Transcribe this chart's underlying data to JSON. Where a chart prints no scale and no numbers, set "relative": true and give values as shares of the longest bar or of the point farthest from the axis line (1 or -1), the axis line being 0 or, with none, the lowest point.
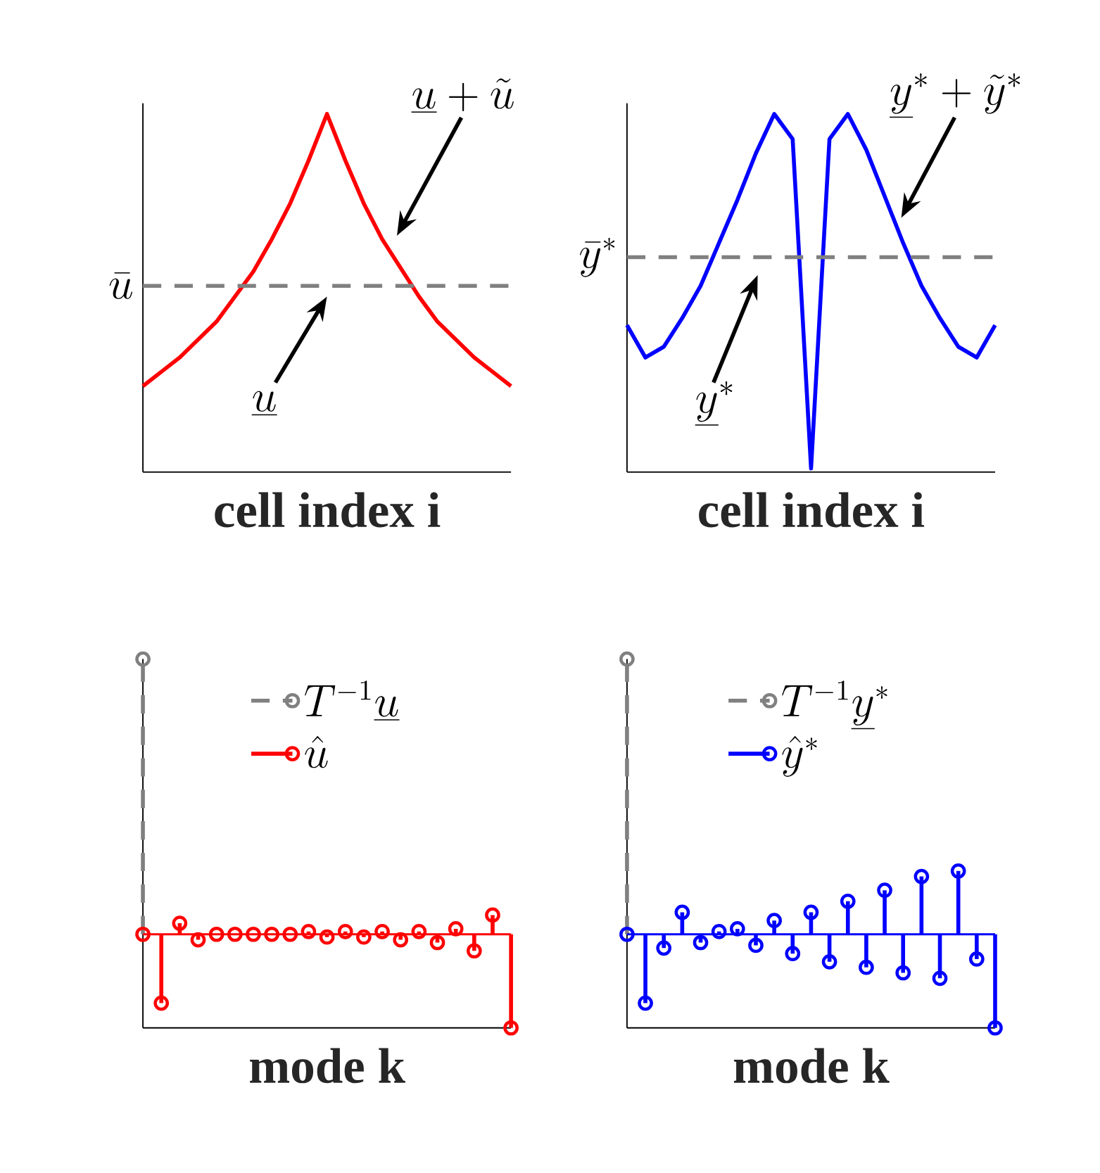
{
  "chart_data": [
    {
      "type": "line",
      "relative": true,
      "xlabel": "cell index i",
      "categories": [
        null,
        null,
        null,
        null,
        null,
        null,
        null,
        null,
        null,
        null,
        null,
        null,
        null,
        null,
        null,
        null,
        null,
        null,
        null,
        null,
        null
      ],
      "series": [
        {
          "color": "#ff0000",
          "values": [
            0.24,
            0.28,
            0.32,
            0.37,
            0.42,
            0.49,
            0.56,
            0.65,
            0.75,
            0.87,
            1,
            0.87,
            0.75,
            0.65,
            0.57,
            0.49,
            0.42,
            0.37,
            0.32,
            0.28,
            0.24
          ]
        }
      ],
      "ref_lines": [
        {
          "axis": "y",
          "value": 0.52,
          "label": "\\bar{u}",
          "color": "#808080",
          "line_style": "dashed"
        }
      ],
      "annotations": [
        "\\underline{u}+\\tilde{u}",
        "\\underline{u}"
      ]
    },
    {
      "type": "line",
      "relative": true,
      "xlabel": "cell index i",
      "categories": [
        null,
        null,
        null,
        null,
        null,
        null,
        null,
        null,
        null,
        null,
        null,
        null,
        null,
        null,
        null,
        null,
        null,
        null,
        null,
        null,
        null
      ],
      "series": [
        {
          "color": "#0000ff",
          "values": [
            0.41,
            0.32,
            0.35,
            0.43,
            0.52,
            0.64,
            0.76,
            0.89,
            1,
            0.93,
            0.01,
            0.93,
            1,
            0.9,
            0.77,
            0.64,
            0.52,
            0.43,
            0.35,
            0.32,
            0.41
          ]
        }
      ],
      "ref_lines": [
        {
          "axis": "y",
          "value": 0.6,
          "label": "\\bar{y}^*",
          "color": "#808080",
          "line_style": "dashed"
        }
      ],
      "annotations": [
        "\\underline{y}^*+\\tilde{y}^*",
        "\\underline{y}^*"
      ]
    },
    {
      "type": "lollipop",
      "relative": true,
      "xlabel": "mode k",
      "marker": "circle",
      "legend": "top",
      "categories": [
        null,
        null,
        null,
        null,
        null,
        null,
        null,
        null,
        null,
        null,
        null,
        null,
        null,
        null,
        null,
        null,
        null,
        null,
        null,
        null,
        null
      ],
      "ref_lines": [
        {
          "axis": "y",
          "value": 0,
          "color": "#ff0000"
        }
      ],
      "series": [
        {
          "name": "T^{-1}\\underline{u}",
          "color": "#808080",
          "line_style": "dashed",
          "values": [
            1,
            null,
            null,
            null,
            null,
            null,
            null,
            null,
            null,
            null,
            null,
            null,
            null,
            null,
            null,
            null,
            null,
            null,
            null,
            null,
            null
          ]
        },
        {
          "name": "\\hat{u}",
          "color": "#ff0000",
          "values": [
            0,
            -0.25,
            0.04,
            -0.02,
            0,
            0,
            0,
            0,
            0,
            0.01,
            -0.01,
            0.01,
            -0.01,
            0.01,
            -0.02,
            0.01,
            -0.03,
            0.02,
            -0.06,
            0.07,
            -0.34
          ]
        }
      ]
    },
    {
      "type": "lollipop",
      "relative": true,
      "xlabel": "mode k",
      "marker": "circle",
      "legend": "top",
      "categories": [
        null,
        null,
        null,
        null,
        null,
        null,
        null,
        null,
        null,
        null,
        null,
        null,
        null,
        null,
        null,
        null,
        null,
        null,
        null,
        null,
        null
      ],
      "ref_lines": [
        {
          "axis": "y",
          "value": 0,
          "color": "#0000ff"
        }
      ],
      "series": [
        {
          "name": "T^{-1}\\underline{y}^*",
          "color": "#808080",
          "line_style": "dashed",
          "values": [
            1,
            null,
            null,
            null,
            null,
            null,
            null,
            null,
            null,
            null,
            null,
            null,
            null,
            null,
            null,
            null,
            null,
            null,
            null,
            null,
            null
          ]
        },
        {
          "name": "\\hat{y}^*",
          "color": "#0000ff",
          "values": [
            0,
            -0.25,
            -0.05,
            0.08,
            -0.03,
            0.01,
            0.02,
            -0.04,
            0.05,
            -0.07,
            0.08,
            -0.1,
            0.12,
            -0.12,
            0.16,
            -0.14,
            0.21,
            -0.16,
            0.23,
            -0.09,
            -0.34
          ]
        }
      ]
    }
  ]
}
